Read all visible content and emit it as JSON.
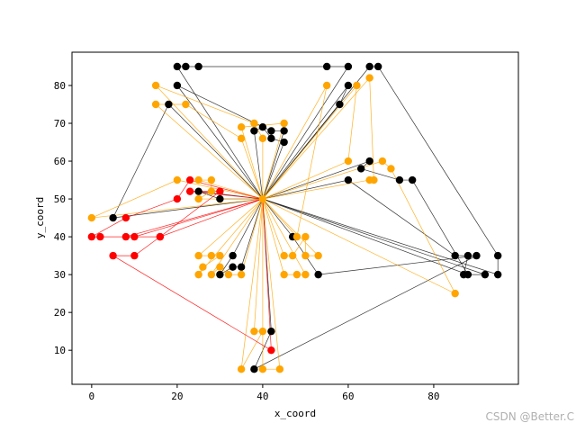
{
  "chart_data": {
    "type": "scatter",
    "title": "",
    "xlabel": "x_coord",
    "ylabel": "y_coord",
    "xlim": [
      -4.6,
      99.8
    ],
    "ylim": [
      1,
      88.8
    ],
    "xticks": [
      0,
      20,
      40,
      60,
      80
    ],
    "yticks": [
      10,
      20,
      30,
      40,
      50,
      60,
      70,
      80
    ],
    "grid": false,
    "depot": {
      "x": 40,
      "y": 50,
      "color": "#ffa500"
    },
    "colors": {
      "black": "#000000",
      "orange": "#ffa500",
      "red": "#ff0000"
    },
    "routes": [
      {
        "color": "black",
        "points": [
          [
            20,
            85
          ],
          [
            22,
            85
          ],
          [
            25,
            85
          ],
          [
            55,
            85
          ],
          [
            60,
            85
          ]
        ]
      },
      {
        "color": "black",
        "points": [
          [
            20,
            80
          ],
          [
            42,
            68
          ],
          [
            45,
            68
          ]
        ]
      },
      {
        "color": "black",
        "points": [
          [
            18,
            75
          ],
          [
            5,
            45
          ]
        ]
      },
      {
        "color": "black",
        "points": [
          [
            65,
            85
          ],
          [
            67,
            85
          ],
          [
            95,
            35
          ],
          [
            95,
            30
          ]
        ]
      },
      {
        "color": "black",
        "points": [
          [
            60,
            80
          ],
          [
            58,
            75
          ]
        ]
      },
      {
        "color": "black",
        "points": [
          [
            38,
            68
          ],
          [
            40,
            69
          ],
          [
            42,
            66
          ],
          [
            45,
            65
          ]
        ]
      },
      {
        "color": "black",
        "points": [
          [
            65,
            60
          ],
          [
            63,
            58
          ],
          [
            72,
            55
          ],
          [
            75,
            55
          ],
          [
            88,
            30
          ]
        ]
      },
      {
        "color": "black",
        "points": [
          [
            60,
            55
          ],
          [
            85,
            35
          ],
          [
            88,
            35
          ],
          [
            87,
            30
          ],
          [
            92,
            30
          ]
        ]
      },
      {
        "color": "black",
        "points": [
          [
            25,
            52
          ],
          [
            30,
            50
          ]
        ]
      },
      {
        "color": "black",
        "points": [
          [
            47,
            40
          ],
          [
            53,
            30
          ],
          [
            90,
            35
          ],
          [
            38,
            5
          ],
          [
            42,
            15
          ]
        ]
      },
      {
        "color": "black",
        "points": [
          [
            33,
            35
          ],
          [
            30,
            30
          ],
          [
            33,
            32
          ],
          [
            35,
            32
          ]
        ]
      },
      {
        "color": "orange",
        "points": [
          [
            15,
            80
          ],
          [
            38,
            70
          ],
          [
            40,
            66
          ]
        ]
      },
      {
        "color": "orange",
        "points": [
          [
            15,
            75
          ],
          [
            22,
            75
          ],
          [
            35,
            66
          ]
        ]
      },
      {
        "color": "orange",
        "points": [
          [
            35,
            69
          ],
          [
            45,
            70
          ]
        ]
      },
      {
        "color": "orange",
        "points": [
          [
            55,
            80
          ],
          [
            48,
            40
          ]
        ]
      },
      {
        "color": "orange",
        "points": [
          [
            62,
            80
          ],
          [
            60,
            60
          ]
        ]
      },
      {
        "color": "orange",
        "points": [
          [
            65,
            82
          ],
          [
            66,
            55
          ],
          [
            65,
            55
          ]
        ]
      },
      {
        "color": "orange",
        "points": [
          [
            68,
            60
          ],
          [
            70,
            58
          ],
          [
            85,
            25
          ]
        ]
      },
      {
        "color": "orange",
        "points": [
          [
            20,
            55
          ],
          [
            0,
            45
          ]
        ]
      },
      {
        "color": "orange",
        "points": [
          [
            25,
            55
          ],
          [
            28,
            55
          ],
          [
            28,
            52
          ],
          [
            25,
            50
          ]
        ]
      },
      {
        "color": "orange",
        "points": [
          [
            25,
            35
          ],
          [
            28,
            35
          ],
          [
            30,
            35
          ],
          [
            26,
            32
          ],
          [
            25,
            30
          ]
        ]
      },
      {
        "color": "orange",
        "points": [
          [
            28,
            30
          ],
          [
            30,
            32
          ],
          [
            32,
            30
          ],
          [
            35,
            30
          ]
        ]
      },
      {
        "color": "orange",
        "points": [
          [
            45,
            35
          ],
          [
            47,
            35
          ],
          [
            50,
            40
          ],
          [
            50,
            35
          ],
          [
            53,
            35
          ]
        ]
      },
      {
        "color": "orange",
        "points": [
          [
            45,
            30
          ],
          [
            48,
            30
          ],
          [
            50,
            30
          ]
        ]
      },
      {
        "color": "orange",
        "points": [
          [
            38,
            15
          ],
          [
            40,
            15
          ],
          [
            35,
            5
          ]
        ]
      },
      {
        "color": "orange",
        "points": [
          [
            40,
            5
          ],
          [
            44,
            5
          ]
        ]
      },
      {
        "color": "red",
        "points": [
          [
            23,
            55
          ],
          [
            20,
            50
          ],
          [
            8,
            45
          ],
          [
            0,
            40
          ],
          [
            2,
            40
          ],
          [
            10,
            40
          ]
        ]
      },
      {
        "color": "red",
        "points": [
          [
            23,
            52
          ],
          [
            30,
            52
          ],
          [
            16,
            40
          ],
          [
            10,
            35
          ],
          [
            5,
            35
          ],
          [
            42,
            10
          ]
        ]
      },
      {
        "color": "red",
        "points": [
          [
            8,
            40
          ],
          [
            16,
            40
          ]
        ]
      }
    ]
  },
  "watermark": "CSDN @Better.C"
}
